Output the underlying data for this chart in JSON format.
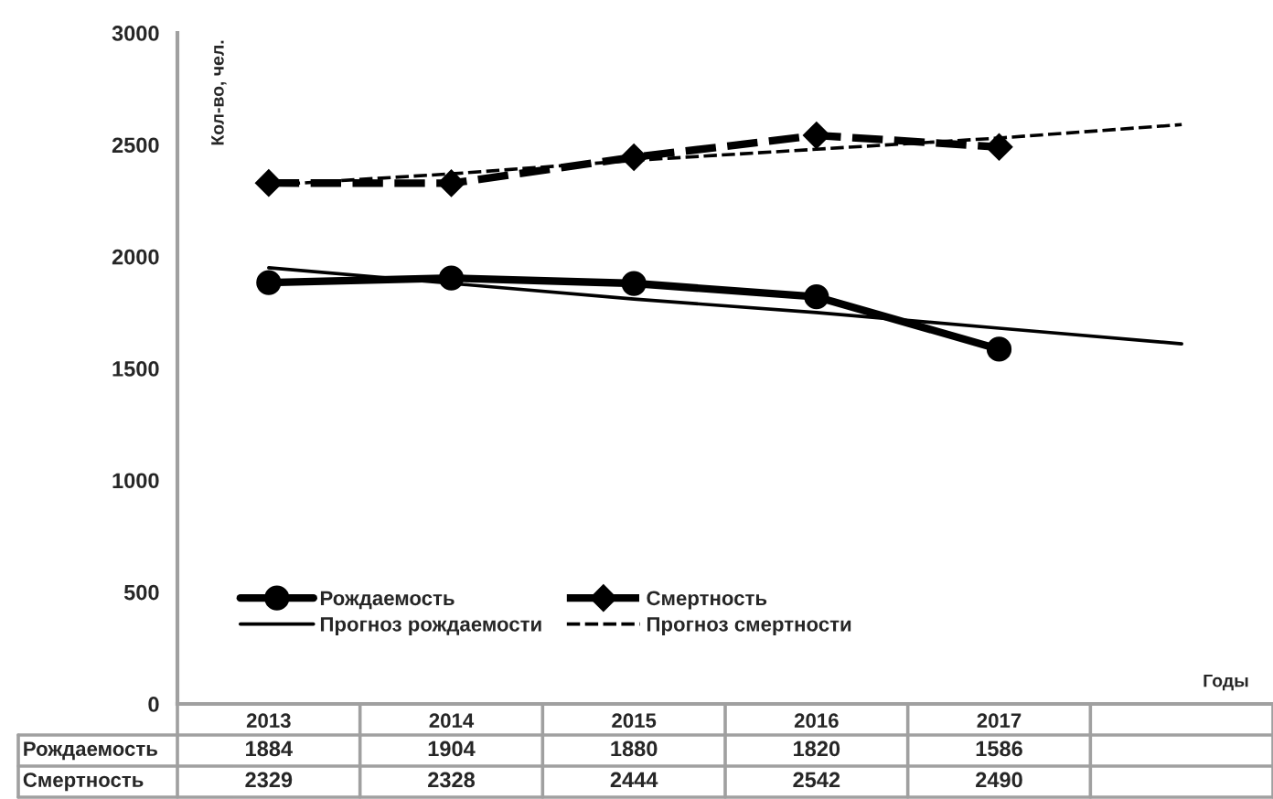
{
  "chart_data": {
    "type": "line",
    "categories": [
      "2013",
      "2014",
      "2015",
      "2016",
      "2017",
      null
    ],
    "ylabel": "Кол-во, чел.",
    "xlabel": "Годы",
    "ylim": [
      0,
      3000
    ],
    "yticks": [
      0,
      500,
      1000,
      1500,
      2000,
      2500,
      3000
    ],
    "grid": false,
    "legend": "bottom left",
    "series": [
      {
        "name": "Рождаемость",
        "color": "#000000",
        "marker": "circle",
        "line_style": "solid",
        "data_labels": true,
        "values": [
          1884,
          1904,
          1880,
          1820,
          1586,
          null
        ]
      },
      {
        "name": "Смертность",
        "color": "#000000",
        "marker": "diamond",
        "line_style": "dashed",
        "data_labels": true,
        "values": [
          2329,
          2328,
          2444,
          2542,
          2490,
          null
        ]
      },
      {
        "name": "Прогноз рождаемости",
        "color": "#000000",
        "marker": "none",
        "line_style": "solid",
        "values": [
          1950,
          1880,
          1810,
          1750,
          1680,
          1610
        ]
      },
      {
        "name": "Прогноз смертности",
        "color": "#000000",
        "marker": "none",
        "line_style": "dashed",
        "values": [
          2320,
          2370,
          2430,
          2480,
          2530,
          2590
        ]
      }
    ]
  }
}
